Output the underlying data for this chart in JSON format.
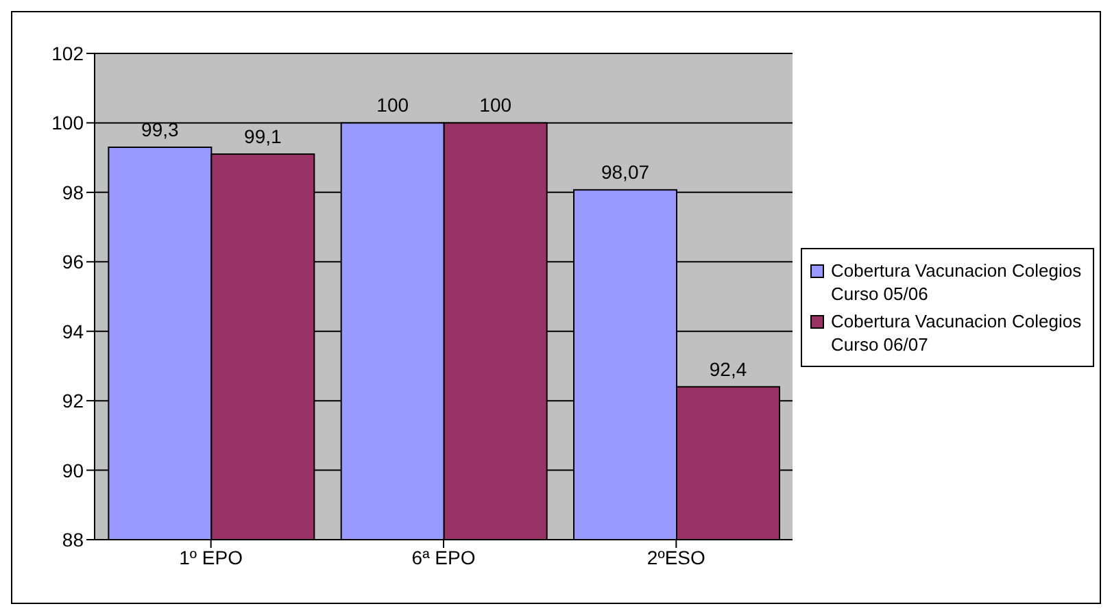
{
  "chart_data": {
    "type": "bar",
    "categories": [
      "1º EPO",
      "6ª EPO",
      "2ºESO"
    ],
    "series": [
      {
        "name": "Cobertura Vacunacion Colegios Curso 05/06",
        "color": "#9999ff",
        "values": [
          99.3,
          100,
          98.07
        ],
        "value_labels": [
          "99,3",
          "100",
          "98,07"
        ]
      },
      {
        "name": "Cobertura Vacunacion Colegios Curso 06/07",
        "color": "#993366",
        "values": [
          99.1,
          100,
          92.4
        ],
        "value_labels": [
          "99,1",
          "100",
          "92,4"
        ]
      }
    ],
    "ylim": [
      88,
      102
    ],
    "yticks": [
      88,
      90,
      92,
      94,
      96,
      98,
      100,
      102
    ],
    "grid": "y",
    "legend": "right"
  }
}
